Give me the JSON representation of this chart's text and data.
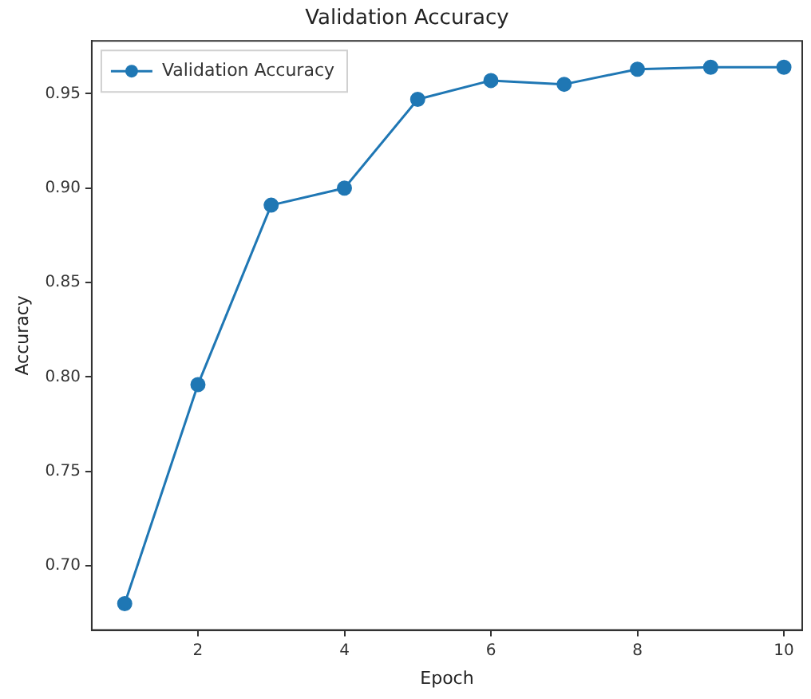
{
  "chart_data": {
    "type": "line",
    "title": "Validation Accuracy",
    "xlabel": "Epoch",
    "ylabel": "Accuracy",
    "x": [
      1,
      2,
      3,
      4,
      5,
      6,
      7,
      8,
      9,
      10
    ],
    "series": [
      {
        "name": "Validation Accuracy",
        "color": "#1f77b4",
        "values": [
          0.68,
          0.796,
          0.891,
          0.9,
          0.947,
          0.957,
          0.955,
          0.963,
          0.964,
          0.964
        ]
      }
    ],
    "xlim": [
      0.55,
      10.25
    ],
    "xticks": [
      2,
      4,
      6,
      8,
      10
    ],
    "ylim": [
      0.666,
      0.978
    ],
    "yticks": [
      {
        "value": 0.7,
        "label": "0.70"
      },
      {
        "value": 0.75,
        "label": "0.75"
      },
      {
        "value": 0.8,
        "label": "0.80"
      },
      {
        "value": 0.85,
        "label": "0.85"
      },
      {
        "value": 0.9,
        "label": "0.90"
      },
      {
        "value": 0.95,
        "label": "0.95"
      }
    ],
    "grid": false,
    "legend": "top left",
    "marker": "circle",
    "line_style": "solid"
  }
}
